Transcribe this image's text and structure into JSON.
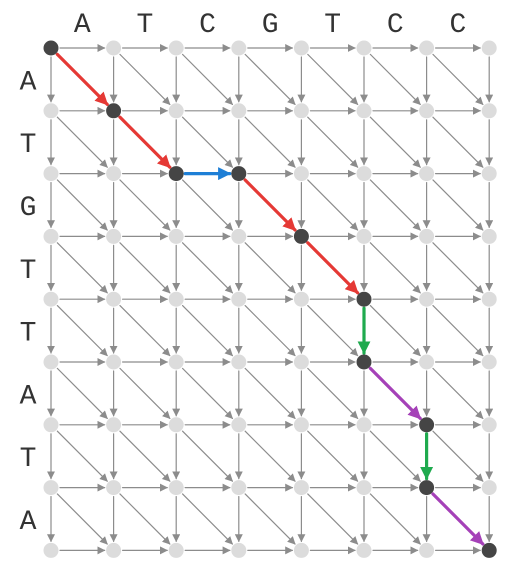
{
  "top_sequence": [
    "A",
    "T",
    "C",
    "G",
    "T",
    "C",
    "C"
  ],
  "left_sequence": [
    "A",
    "T",
    "G",
    "T",
    "T",
    "A",
    "T",
    "A"
  ],
  "colors": {
    "background_node": "#dcdcdc",
    "path_node": "#454545",
    "grid_edge": "#8c8c8c",
    "match_edge": "#e53935",
    "horizontal_gap_edge": "#1e7fd6",
    "vertical_gap_edge": "#1faa4e",
    "mismatch_edge": "#a541b8",
    "label_text": "#333333"
  },
  "alignment_path": {
    "nodes": [
      [
        0,
        0
      ],
      [
        1,
        1
      ],
      [
        2,
        2
      ],
      [
        2,
        3
      ],
      [
        3,
        4
      ],
      [
        4,
        5
      ],
      [
        5,
        5
      ],
      [
        6,
        6
      ],
      [
        7,
        6
      ],
      [
        8,
        7
      ]
    ],
    "moves": [
      {
        "kind": "diagonal-match"
      },
      {
        "kind": "diagonal-match"
      },
      {
        "kind": "horizontal-gap"
      },
      {
        "kind": "diagonal-match"
      },
      {
        "kind": "diagonal-match"
      },
      {
        "kind": "vertical-gap"
      },
      {
        "kind": "diagonal-mismatch"
      },
      {
        "kind": "vertical-gap"
      },
      {
        "kind": "diagonal-mismatch"
      }
    ]
  }
}
